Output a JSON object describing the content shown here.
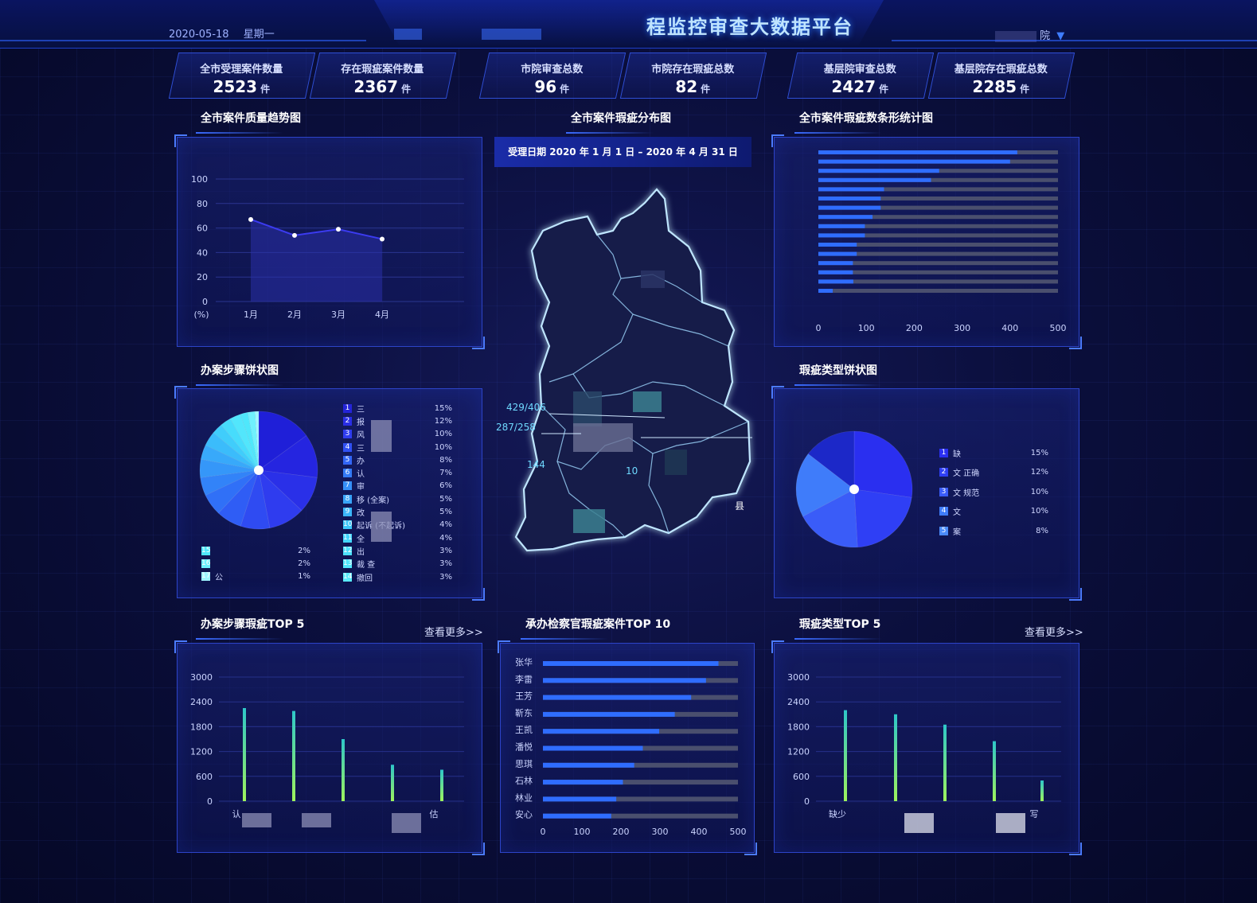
{
  "header": {
    "date": "2020-05-18",
    "weekday": "星期一",
    "title": "程监控审查大数据平台",
    "org": "院",
    "org_caret": "▼"
  },
  "stats": [
    {
      "label": "全市受理案件数量",
      "value": "2523",
      "unit": "件"
    },
    {
      "label": "存在瑕疵案件数量",
      "value": "2367",
      "unit": "件"
    },
    {
      "label": "市院审查总数",
      "value": "96",
      "unit": "件"
    },
    {
      "label": "市院存在瑕疵总数",
      "value": "82",
      "unit": "件"
    },
    {
      "label": "基层院审查总数",
      "value": "2427",
      "unit": "件"
    },
    {
      "label": "基层院存在瑕疵总数",
      "value": "2285",
      "unit": "件"
    }
  ],
  "panels": {
    "trend_title": "全市案件质量趋势图",
    "map_title": "全市案件瑕疵分布图",
    "hbar_title": "全市案件瑕疵数条形统计图",
    "steps_pie_title": "办案步骤饼状图",
    "type_pie_title": "瑕疵类型饼状图",
    "steps_top5_title": "办案步骤瑕疵TOP 5",
    "prosecutor_title": "承办检察官瑕疵案件TOP 10",
    "type_top5_title": "瑕疵类型TOP 5",
    "more_label": "查看更多>>"
  },
  "map": {
    "date_range": "受理日期  2020 年 1 月 1 日 – 2020 年 4 月 31 日",
    "labels": [
      "429/406",
      "287/258",
      "144",
      "县",
      "10"
    ]
  },
  "colors": {
    "accent": "#3a6bff",
    "bar_fill": "#2f6dff",
    "bar_track": "#4a4f6e",
    "line": "#3b3bf0",
    "green": "#9ef35b",
    "teal": "#2ec7c9"
  },
  "chart_data": [
    {
      "type": "line",
      "title": "全市案件质量趋势图",
      "categories": [
        "1月",
        "2月",
        "3月",
        "4月"
      ],
      "values": [
        67,
        54,
        59,
        51
      ],
      "ylim": [
        0,
        100
      ],
      "yticks": [
        0,
        20,
        40,
        60,
        80,
        100
      ],
      "ylabel": "(%)"
    },
    {
      "type": "bar",
      "orientation": "horizontal",
      "title": "全市案件瑕疵数条形统计图",
      "values": [
        415,
        400,
        252,
        235,
        137,
        130,
        130,
        113,
        97,
        97,
        80,
        80,
        72,
        72,
        73,
        30
      ],
      "xlim": [
        0,
        500
      ],
      "xticks": [
        0,
        100,
        200,
        300,
        400,
        500
      ]
    },
    {
      "type": "pie",
      "title": "办案步骤饼状图",
      "legend": [
        {
          "num": "1",
          "name": "三",
          "pct": "15%"
        },
        {
          "num": "2",
          "name": "报",
          "pct": "12%"
        },
        {
          "num": "3",
          "name": "风",
          "pct": "10%"
        },
        {
          "num": "4",
          "name": "三",
          "pct": "10%"
        },
        {
          "num": "5",
          "name": "办",
          "pct": "8%"
        },
        {
          "num": "6",
          "name": "认",
          "pct": "7%"
        },
        {
          "num": "7",
          "name": "审",
          "pct": "6%"
        },
        {
          "num": "8",
          "name": "移 (全案)",
          "pct": "5%"
        },
        {
          "num": "9",
          "name": "改",
          "pct": "5%"
        },
        {
          "num": "10",
          "name": "起诉 (不起诉)",
          "pct": "4%"
        },
        {
          "num": "11",
          "name": "全",
          "pct": "4%"
        },
        {
          "num": "12",
          "name": "出",
          "pct": "3%"
        },
        {
          "num": "13",
          "name": "裁 查",
          "pct": "3%"
        },
        {
          "num": "14",
          "name": "撤回",
          "pct": "3%"
        },
        {
          "num": "15",
          "name": "",
          "pct": "2%"
        },
        {
          "num": "16",
          "name": "",
          "pct": "2%"
        },
        {
          "num": "17",
          "name": "公",
          "pct": "1%"
        }
      ],
      "values": [
        15,
        12,
        10,
        10,
        8,
        7,
        6,
        5,
        5,
        4,
        4,
        3,
        3,
        3,
        2,
        2,
        1
      ]
    },
    {
      "type": "pie",
      "title": "瑕疵类型饼状图",
      "legend": [
        {
          "num": "1",
          "name": "缺",
          "pct": "15%"
        },
        {
          "num": "2",
          "name": "文 正确",
          "pct": "12%"
        },
        {
          "num": "3",
          "name": "文 规范",
          "pct": "10%"
        },
        {
          "num": "4",
          "name": "文",
          "pct": "10%"
        },
        {
          "num": "5",
          "name": "案",
          "pct": "8%"
        }
      ],
      "values": [
        15,
        12,
        10,
        10,
        8
      ]
    },
    {
      "type": "bar",
      "title": "办案步骤瑕疵TOP 5",
      "categories": [
        "认",
        "",
        "",
        "",
        "估"
      ],
      "values": [
        2250,
        2180,
        1500,
        880,
        760
      ],
      "ylim": [
        0,
        3000
      ],
      "yticks": [
        0,
        600,
        1200,
        1800,
        2400,
        3000
      ]
    },
    {
      "type": "bar",
      "orientation": "horizontal",
      "title": "承办检察官瑕疵案件TOP 10",
      "categories": [
        "张华",
        "李雷",
        "王芳",
        "靳东",
        "王凯",
        "潘悦",
        "思琪",
        "石林",
        "林业",
        "安心"
      ],
      "values": [
        450,
        418,
        380,
        338,
        298,
        256,
        234,
        205,
        188,
        175
      ],
      "xlim": [
        0,
        500
      ],
      "xticks": [
        0,
        100,
        200,
        300,
        400,
        500
      ]
    },
    {
      "type": "bar",
      "title": "瑕疵类型TOP 5",
      "categories": [
        "缺少",
        "",
        "",
        "",
        "写"
      ],
      "values": [
        2200,
        2100,
        1850,
        1450,
        500
      ],
      "ylim": [
        0,
        3000
      ],
      "yticks": [
        0,
        600,
        1200,
        1800,
        2400,
        3000
      ]
    }
  ]
}
